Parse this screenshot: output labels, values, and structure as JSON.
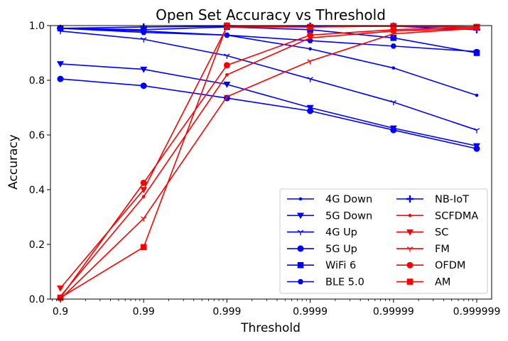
{
  "chart_data": {
    "type": "line",
    "title": "Open Set Accuracy vs Threshold",
    "xlabel": "Threshold",
    "ylabel": "Accuracy",
    "x_scale": "log(1 / (1 - threshold))",
    "x": [
      0.9,
      0.99,
      0.999,
      0.9999,
      0.99999,
      0.999999
    ],
    "xtick_labels": [
      "0.9",
      "0.99",
      "0.999",
      "0.9999",
      "0.99999",
      "0.999999"
    ],
    "ylim": [
      0.0,
      1.0
    ],
    "yticks": [
      0.0,
      0.2,
      0.4,
      0.6,
      0.8,
      1.0
    ],
    "ytick_labels": [
      "0.0",
      "0.2",
      "0.4",
      "0.6",
      "0.8",
      "1.0"
    ],
    "grid": false,
    "legend": {
      "position": "lower-right",
      "columns": 2
    },
    "series": [
      {
        "name": "4G Down",
        "color": "#0000ff",
        "marker": "point",
        "values": [
          0.99,
          0.98,
          0.965,
          0.915,
          0.845,
          0.745
        ]
      },
      {
        "name": "5G Down",
        "color": "#0000ff",
        "marker": "triangle-down",
        "values": [
          0.86,
          0.84,
          0.785,
          0.7,
          0.625,
          0.56
        ]
      },
      {
        "name": "4G Up",
        "color": "#0000ff",
        "marker": "tri-down",
        "values": [
          0.98,
          0.95,
          0.89,
          0.805,
          0.72,
          0.618
        ]
      },
      {
        "name": "5G Up",
        "color": "#0000ff",
        "marker": "circle",
        "values": [
          0.805,
          0.78,
          0.735,
          0.688,
          0.618,
          0.55
        ]
      },
      {
        "name": "WiFi 6",
        "color": "#0000ff",
        "marker": "square",
        "values": [
          0.99,
          0.985,
          0.995,
          0.985,
          0.955,
          0.9
        ]
      },
      {
        "name": "BLE 5.0",
        "color": "#0000ff",
        "marker": "pentagon",
        "values": [
          0.99,
          0.975,
          0.965,
          0.945,
          0.925,
          0.905
        ]
      },
      {
        "name": "NB-IoT",
        "color": "#0000ff",
        "marker": "plus",
        "values": [
          0.99,
          0.995,
          0.998,
          0.998,
          0.998,
          0.985
        ]
      },
      {
        "name": "SCFDMA",
        "color": "#ff0000",
        "marker": "point",
        "values": [
          0.01,
          0.375,
          0.82,
          0.955,
          0.98,
          0.99
        ]
      },
      {
        "name": "SC",
        "color": "#ff0000",
        "marker": "triangle-down",
        "values": [
          0.04,
          0.4,
          0.995,
          0.995,
          0.998,
          0.995
        ]
      },
      {
        "name": "FM",
        "color": "#ff0000",
        "marker": "tri-down",
        "values": [
          0.0,
          0.295,
          0.74,
          0.87,
          0.97,
          0.99
        ]
      },
      {
        "name": "OFDM",
        "color": "#ff0000",
        "marker": "circle",
        "values": [
          0.005,
          0.425,
          0.855,
          0.965,
          0.985,
          0.995
        ]
      },
      {
        "name": "AM",
        "color": "#ff0000",
        "marker": "square",
        "values": [
          0.005,
          0.19,
          1.0,
          0.995,
          0.998,
          0.995
        ]
      }
    ]
  }
}
